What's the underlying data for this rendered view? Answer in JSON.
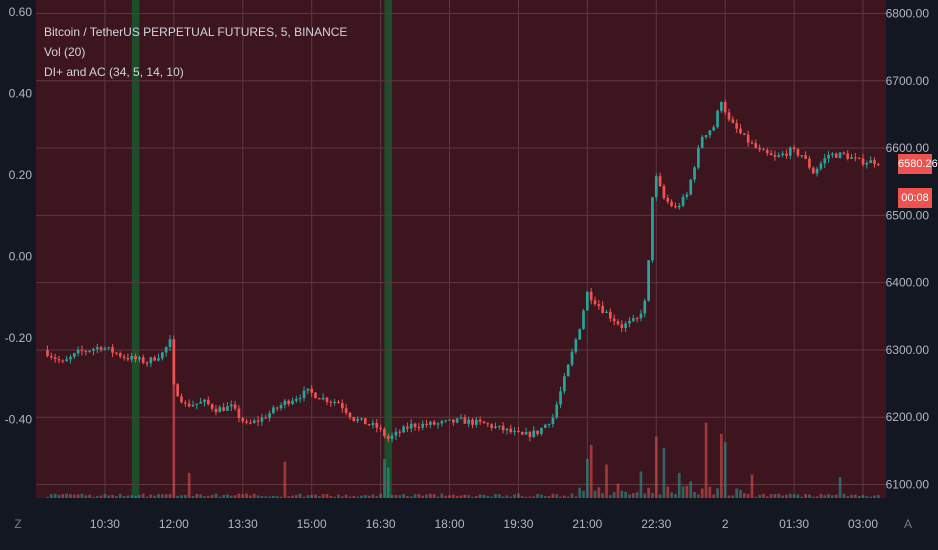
{
  "legend": {
    "symbol": "Bitcoin / TetherUS PERPETUAL FUTURES, 5, BINANCE",
    "volume": "Vol (20)",
    "indicator": "DI+ and AC (34, 5, 14, 10)"
  },
  "corner_labels": {
    "left": "Z",
    "right": "A"
  },
  "price_tag": {
    "last": "6580.26",
    "countdown": "00:08"
  },
  "colors": {
    "background": "#131722",
    "panel": "#3c151f",
    "grid": "#5c3741",
    "up": "#26a69a",
    "down": "#ef5350",
    "green_band": "#1e4d2b"
  },
  "chart_data": {
    "type": "candlestick",
    "left_axis": {
      "ticks": [
        0.6,
        0.4,
        0.2,
        0.0,
        -0.2,
        -0.4
      ],
      "labels": [
        "0.60",
        "0.40",
        "0.20",
        "0.00",
        "-0.20",
        "-0.40"
      ]
    },
    "right_axis": {
      "ylim": [
        6080,
        6820
      ],
      "ticks": [
        6800,
        6700,
        6600,
        6500,
        6400,
        6300,
        6200,
        6100
      ],
      "labels": [
        "6800.00",
        "6700.00",
        "6600.00",
        "6500.00",
        "6400.00",
        "6300.00",
        "6200.00",
        "6100.00"
      ]
    },
    "x_ticks": [
      "10:30",
      "12:00",
      "13:30",
      "15:00",
      "16:30",
      "18:00",
      "19:30",
      "21:00",
      "22:30",
      "2",
      "01:30",
      "03:00"
    ],
    "green_bands": [
      "11:05-11:15",
      "16:35-16:45"
    ],
    "price_anchors": [
      [
        "09:15",
        6300
      ],
      [
        "09:40",
        6280
      ],
      [
        "10:00",
        6296
      ],
      [
        "10:30",
        6305
      ],
      [
        "11:00",
        6290
      ],
      [
        "11:30",
        6282
      ],
      [
        "11:50",
        6295
      ],
      [
        "12:00",
        6312
      ],
      [
        "12:05",
        6245
      ],
      [
        "12:20",
        6218
      ],
      [
        "12:45",
        6222
      ],
      [
        "13:00",
        6212
      ],
      [
        "13:20",
        6215
      ],
      [
        "13:40",
        6188
      ],
      [
        "14:00",
        6198
      ],
      [
        "14:30",
        6222
      ],
      [
        "15:00",
        6238
      ],
      [
        "15:20",
        6228
      ],
      [
        "15:40",
        6222
      ],
      [
        "16:00",
        6198
      ],
      [
        "16:30",
        6185
      ],
      [
        "16:45",
        6168
      ],
      [
        "17:15",
        6188
      ],
      [
        "17:50",
        6190
      ],
      [
        "18:20",
        6195
      ],
      [
        "18:50",
        6190
      ],
      [
        "19:20",
        6180
      ],
      [
        "19:40",
        6172
      ],
      [
        "20:00",
        6178
      ],
      [
        "20:20",
        6200
      ],
      [
        "20:40",
        6275
      ],
      [
        "20:55",
        6335
      ],
      [
        "21:05",
        6385
      ],
      [
        "21:25",
        6360
      ],
      [
        "21:50",
        6335
      ],
      [
        "22:10",
        6345
      ],
      [
        "22:20",
        6370
      ],
      [
        "22:25",
        6430
      ],
      [
        "22:30",
        6530
      ],
      [
        "22:35",
        6555
      ],
      [
        "22:45",
        6525
      ],
      [
        "23:00",
        6510
      ],
      [
        "23:15",
        6530
      ],
      [
        "23:25",
        6575
      ],
      [
        "23:35",
        6618
      ],
      [
        "23:50",
        6632
      ],
      [
        "00:00",
        6672
      ],
      [
        "00:10",
        6640
      ],
      [
        "00:30",
        6615
      ],
      [
        "00:50",
        6595
      ],
      [
        "01:10",
        6585
      ],
      [
        "01:30",
        6596
      ],
      [
        "01:45",
        6590
      ],
      [
        "02:00",
        6564
      ],
      [
        "02:20",
        6590
      ],
      [
        "02:40",
        6590
      ],
      [
        "03:00",
        6580
      ],
      [
        "03:20",
        6580
      ]
    ],
    "volume_spikes": [
      [
        "12:00",
        430
      ],
      [
        "12:20",
        90
      ],
      [
        "14:25",
        130
      ],
      [
        "16:35",
        140
      ],
      [
        "16:40",
        110
      ],
      [
        "21:00",
        140
      ],
      [
        "21:05",
        190
      ],
      [
        "21:25",
        120
      ],
      [
        "22:10",
        95
      ],
      [
        "22:30",
        220
      ],
      [
        "22:40",
        180
      ],
      [
        "23:00",
        90
      ],
      [
        "23:15",
        60
      ],
      [
        "23:35",
        270
      ],
      [
        "23:55",
        230
      ],
      [
        "00:00",
        200
      ],
      [
        "00:35",
        85
      ],
      [
        "02:30",
        75
      ]
    ]
  }
}
